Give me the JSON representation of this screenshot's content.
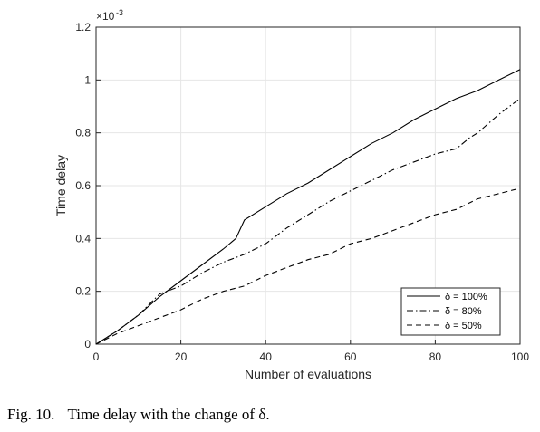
{
  "chart_data": {
    "type": "line",
    "xlabel": "Number of evaluations",
    "ylabel": "Time delay",
    "xlim": [
      0,
      100
    ],
    "ylim": [
      0,
      1.2
    ],
    "y_multiplier": "×10",
    "y_exponent": "-3",
    "grid": true,
    "legend_position": "bottom-right",
    "xticks": [
      "0",
      "20",
      "40",
      "60",
      "80",
      "100"
    ],
    "yticks": [
      "0",
      "0.2",
      "0.4",
      "0.6",
      "0.8",
      "1",
      "1.2"
    ],
    "series": [
      {
        "name": "δ = 100%",
        "style": "solid",
        "color": "#000000",
        "x": [
          0,
          5,
          10,
          15,
          20,
          25,
          30,
          33,
          35,
          40,
          45,
          50,
          55,
          60,
          65,
          70,
          75,
          80,
          85,
          90,
          95,
          100
        ],
        "y": [
          0,
          0.05,
          0.11,
          0.18,
          0.24,
          0.3,
          0.36,
          0.4,
          0.47,
          0.52,
          0.57,
          0.61,
          0.66,
          0.71,
          0.76,
          0.8,
          0.85,
          0.89,
          0.93,
          0.96,
          1.0,
          1.04
        ]
      },
      {
        "name": "δ = 80%",
        "style": "dashdot",
        "color": "#000000",
        "x": [
          0,
          5,
          10,
          15,
          20,
          25,
          30,
          35,
          40,
          45,
          50,
          55,
          60,
          65,
          70,
          75,
          80,
          85,
          88,
          90,
          95,
          100
        ],
        "y": [
          0,
          0.05,
          0.11,
          0.19,
          0.22,
          0.27,
          0.31,
          0.34,
          0.38,
          0.44,
          0.49,
          0.54,
          0.58,
          0.62,
          0.66,
          0.69,
          0.72,
          0.74,
          0.78,
          0.8,
          0.87,
          0.93
        ]
      },
      {
        "name": "δ = 50%",
        "style": "dashed",
        "color": "#000000",
        "x": [
          0,
          5,
          10,
          15,
          20,
          25,
          30,
          35,
          40,
          45,
          50,
          55,
          60,
          65,
          70,
          75,
          80,
          85,
          90,
          95,
          100
        ],
        "y": [
          0,
          0.04,
          0.07,
          0.1,
          0.13,
          0.17,
          0.2,
          0.22,
          0.26,
          0.29,
          0.32,
          0.34,
          0.38,
          0.4,
          0.43,
          0.46,
          0.49,
          0.51,
          0.55,
          0.57,
          0.59
        ]
      }
    ]
  },
  "caption": {
    "label": "Fig. 10.",
    "text": "Time delay with the change of δ."
  }
}
